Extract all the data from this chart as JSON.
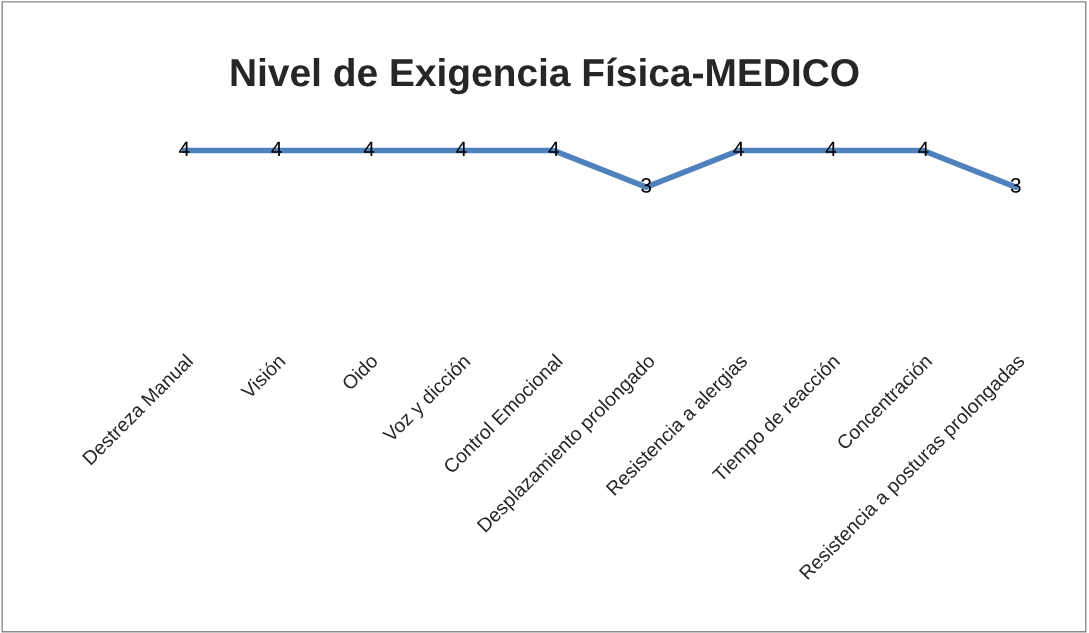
{
  "chart_data": {
    "type": "line",
    "title": "Nivel de Exigencia Física-MEDICO",
    "categories": [
      "Destreza Manual",
      "Visión",
      "Oido",
      "Voz y dicción",
      "Control Emocional",
      "Desplazamiento prolongado",
      "Resistencia a alergias",
      "Tiempo de reacción",
      "Concentración",
      "Resistencia a posturas prolongadas"
    ],
    "values": [
      4,
      4,
      4,
      4,
      4,
      3,
      4,
      4,
      4,
      3
    ],
    "color": "#4f81bd",
    "data_labels": true
  }
}
